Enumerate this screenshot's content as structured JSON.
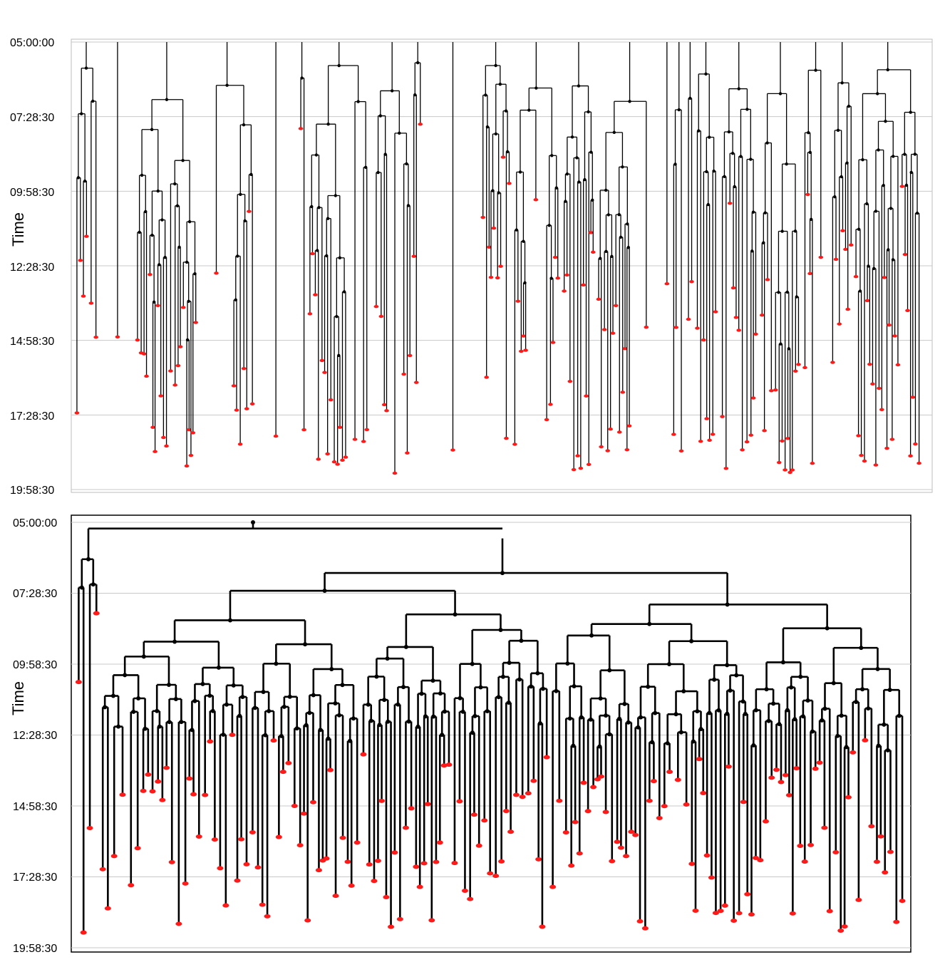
{
  "chart_data": [
    {
      "type": "tree",
      "panel": "top",
      "title": "",
      "ylabel": "Time",
      "y_ticks": [
        "05:00:00",
        "07:28:30",
        "09:58:30",
        "12:28:30",
        "14:58:30",
        "17:28:30",
        "19:58:30"
      ],
      "y_range_hours": [
        5.0,
        19.975
      ],
      "grid": "horizontal",
      "n_leaf_columns": 180,
      "colors": {
        "line": "#000000",
        "terminal_node": "#ff1a1a",
        "branch_node": "#000000",
        "grid": "#c8c8c8"
      }
    },
    {
      "type": "tree",
      "panel": "bottom",
      "title": "",
      "ylabel": "Time",
      "y_ticks": [
        "05:00:00",
        "07:28:30",
        "09:58:30",
        "12:28:30",
        "14:58:30",
        "17:28:30",
        "19:58:30"
      ],
      "y_range_hours": [
        5.0,
        19.975
      ],
      "grid": "horizontal",
      "root_time": "05:00:00",
      "first_split_time": "05:13:00",
      "n_leaves": 128,
      "colors": {
        "line": "#000000",
        "terminal_node": "#ff1a1a",
        "branch_node": "#000000",
        "grid": "#c8c8c8"
      }
    }
  ]
}
